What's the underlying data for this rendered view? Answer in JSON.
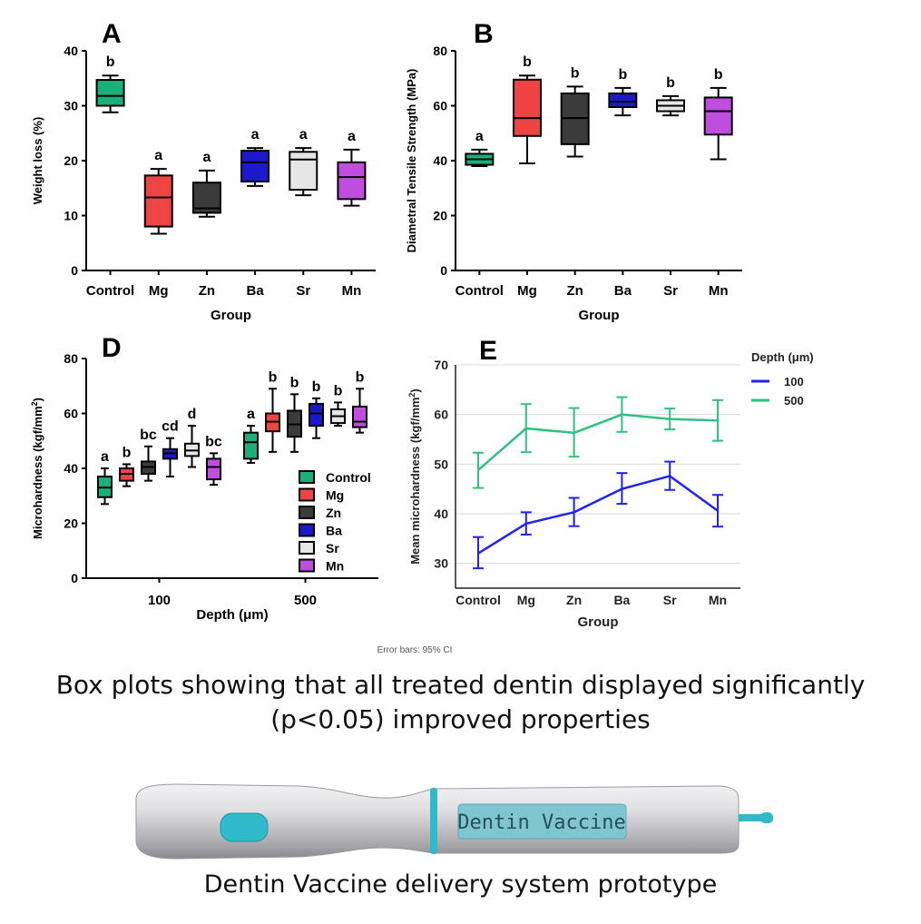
{
  "chart_data": [
    {
      "type": "box",
      "panel_letter": "A",
      "xlabel": "Group",
      "ylabel": "Weight loss (%)",
      "ylim": [
        0,
        40
      ],
      "yticks": [
        0,
        10,
        20,
        30,
        40
      ],
      "categories": [
        "Control",
        "Mg",
        "Zn",
        "Ba",
        "Sr",
        "Mn"
      ],
      "boxes": [
        {
          "min": 28.8,
          "q1": 30.0,
          "median": 31.8,
          "q3": 34.7,
          "max": 35.5,
          "letter": "b",
          "color": "#1bb07a"
        },
        {
          "min": 6.7,
          "q1": 8.0,
          "median": 13.3,
          "q3": 17.3,
          "max": 18.5,
          "letter": "a",
          "color": "#ee4444"
        },
        {
          "min": 9.8,
          "q1": 10.5,
          "median": 11.3,
          "q3": 16.0,
          "max": 18.2,
          "letter": "a",
          "color": "#3b3b3b"
        },
        {
          "min": 15.4,
          "q1": 16.2,
          "median": 19.7,
          "q3": 21.8,
          "max": 22.3,
          "letter": "a",
          "color": "#1a1acc"
        },
        {
          "min": 13.7,
          "q1": 14.7,
          "median": 20.2,
          "q3": 21.6,
          "max": 22.3,
          "letter": "a",
          "color": "#e6e6e6"
        },
        {
          "min": 11.8,
          "q1": 13.0,
          "median": 17.0,
          "q3": 19.7,
          "max": 22.0,
          "letter": "a",
          "color": "#bf4de0"
        }
      ]
    },
    {
      "type": "box",
      "panel_letter": "B",
      "xlabel": "Group",
      "ylabel": "Diametral Tensile Strength (MPa)",
      "ylim": [
        0,
        80
      ],
      "yticks": [
        0,
        20,
        40,
        60,
        80
      ],
      "categories": [
        "Control",
        "Mg",
        "Zn",
        "Ba",
        "Sr",
        "Mn"
      ],
      "boxes": [
        {
          "min": 38.0,
          "q1": 38.5,
          "median": 40.5,
          "q3": 42.5,
          "max": 44.0,
          "letter": "a",
          "color": "#1bb07a"
        },
        {
          "min": 39.0,
          "q1": 49.0,
          "median": 55.5,
          "q3": 69.5,
          "max": 71.0,
          "letter": "b",
          "color": "#ee4444"
        },
        {
          "min": 41.5,
          "q1": 46.0,
          "median": 55.5,
          "q3": 64.5,
          "max": 67.0,
          "letter": "b",
          "color": "#3b3b3b"
        },
        {
          "min": 56.5,
          "q1": 59.5,
          "median": 61.5,
          "q3": 64.5,
          "max": 66.5,
          "letter": "b",
          "color": "#1a1acc"
        },
        {
          "min": 56.5,
          "q1": 58.0,
          "median": 60.0,
          "q3": 62.0,
          "max": 63.5,
          "letter": "b",
          "color": "#e6e6e6"
        },
        {
          "min": 40.5,
          "q1": 49.5,
          "median": 58.0,
          "q3": 63.0,
          "max": 66.5,
          "letter": "b",
          "color": "#bf4de0"
        }
      ]
    },
    {
      "type": "box",
      "panel_letter": "D",
      "xlabel": "Depth (μm)",
      "ylabel": "Microhardness (kgf/mm²)",
      "ylim": [
        0,
        80
      ],
      "yticks": [
        0,
        20,
        40,
        60,
        80
      ],
      "groups": [
        "100",
        "500"
      ],
      "legend": [
        "Control",
        "Mg",
        "Zn",
        "Ba",
        "Sr",
        "Mn"
      ],
      "legend_position": "lower-right",
      "colors": [
        "#1bb07a",
        "#ee4444",
        "#3b3b3b",
        "#1a1acc",
        "#e6e6e6",
        "#bf4de0"
      ],
      "boxes": [
        [
          {
            "min": 27.0,
            "q1": 29.5,
            "median": 33.0,
            "q3": 37.0,
            "max": 40.0,
            "letter": "a"
          },
          {
            "min": 33.5,
            "q1": 35.5,
            "median": 38.0,
            "q3": 40.0,
            "max": 41.5,
            "letter": "b"
          },
          {
            "min": 35.5,
            "q1": 38.0,
            "median": 40.5,
            "q3": 42.5,
            "max": 48.0,
            "letter": "bc"
          },
          {
            "min": 37.0,
            "q1": 43.5,
            "median": 45.5,
            "q3": 47.0,
            "max": 51.0,
            "letter": "cd"
          },
          {
            "min": 40.5,
            "q1": 44.5,
            "median": 46.5,
            "q3": 49.0,
            "max": 55.5,
            "letter": "d"
          },
          {
            "min": 34.0,
            "q1": 36.0,
            "median": 40.5,
            "q3": 43.5,
            "max": 45.5,
            "letter": "bc"
          }
        ],
        [
          {
            "min": 42.0,
            "q1": 43.5,
            "median": 49.5,
            "q3": 53.0,
            "max": 55.5,
            "letter": "a"
          },
          {
            "min": 46.0,
            "q1": 53.5,
            "median": 57.0,
            "q3": 60.0,
            "max": 69.0,
            "letter": "b"
          },
          {
            "min": 46.0,
            "q1": 51.5,
            "median": 56.0,
            "q3": 61.0,
            "max": 67.0,
            "letter": "b"
          },
          {
            "min": 51.0,
            "q1": 55.5,
            "median": 60.0,
            "q3": 63.5,
            "max": 65.5,
            "letter": "b"
          },
          {
            "min": 55.5,
            "q1": 56.5,
            "median": 59.0,
            "q3": 61.5,
            "max": 64.0,
            "letter": "b"
          },
          {
            "min": 53.0,
            "q1": 55.0,
            "median": 57.0,
            "q3": 62.5,
            "max": 69.0,
            "letter": "b"
          }
        ]
      ]
    },
    {
      "type": "line",
      "panel_letter": "E",
      "xlabel": "Group",
      "ylabel": "Mean microhardness (kgf/mm²)",
      "ylim": [
        25,
        70
      ],
      "yticks": [
        30,
        40,
        50,
        60,
        70
      ],
      "grid": true,
      "categories": [
        "Control",
        "Mg",
        "Zn",
        "Ba",
        "Sr",
        "Mn"
      ],
      "legend_title": "Depth (μm)",
      "legend_position": "top-right",
      "series": [
        {
          "name": "100",
          "color": "#2222ee",
          "values": [
            32.0,
            38.0,
            40.3,
            45.0,
            47.6,
            40.6
          ],
          "ci_low": [
            29.0,
            35.8,
            37.5,
            42.0,
            44.8,
            37.4
          ],
          "ci_high": [
            35.3,
            40.3,
            43.2,
            48.2,
            50.5,
            43.8
          ]
        },
        {
          "name": "500",
          "color": "#2ec27e",
          "values": [
            48.8,
            57.2,
            56.3,
            60.0,
            59.1,
            58.8
          ],
          "ci_low": [
            45.2,
            52.4,
            51.5,
            56.5,
            57.0,
            54.7
          ],
          "ci_high": [
            52.3,
            62.1,
            61.3,
            63.5,
            61.2,
            62.9
          ]
        }
      ],
      "note": "Error bars: 95% CI"
    }
  ],
  "captions": {
    "figure": "Box plots showing that all treated dentin displayed significantly (p<0.05) improved properties",
    "prototype": "Dentin Vaccine delivery system prototype"
  },
  "prototype": {
    "label": "Dentin Vaccine",
    "body_color": "#d9d9dc",
    "accent_color": "#2fb9c9"
  }
}
